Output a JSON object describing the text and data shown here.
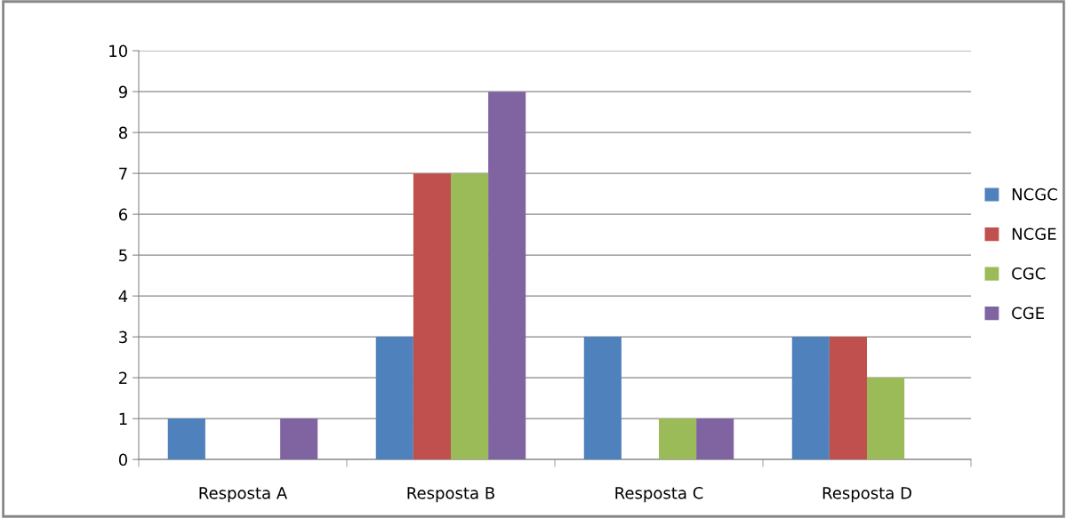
{
  "chart_data": {
    "type": "bar",
    "categories": [
      "Resposta A",
      "Resposta B",
      "Resposta C",
      "Resposta D"
    ],
    "series": [
      {
        "name": "NCGC",
        "color": "#4f81bd",
        "values": [
          1,
          3,
          3,
          3
        ]
      },
      {
        "name": "NCGE",
        "color": "#c0504d",
        "values": [
          0,
          7,
          0,
          3
        ]
      },
      {
        "name": "CGC",
        "color": "#9bbb59",
        "values": [
          0,
          7,
          1,
          2
        ]
      },
      {
        "name": "CGE",
        "color": "#8064a2",
        "values": [
          1,
          9,
          1,
          0
        ]
      }
    ],
    "ylim": [
      0,
      10
    ],
    "yticks": [
      0,
      1,
      2,
      3,
      4,
      5,
      6,
      7,
      8,
      9,
      10
    ],
    "grid": "y",
    "legend": "right"
  }
}
